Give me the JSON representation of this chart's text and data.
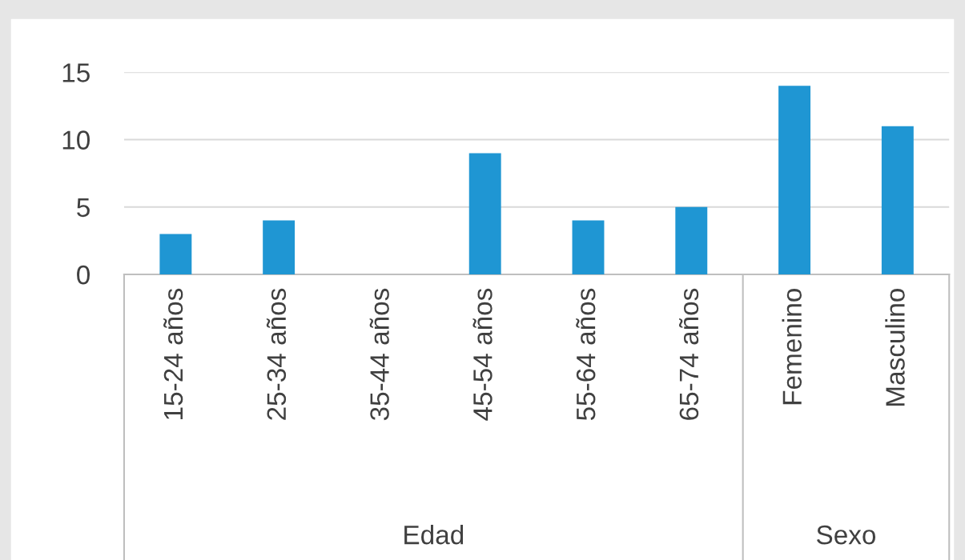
{
  "chart_data": {
    "type": "bar",
    "categories": [
      "15-24 años",
      "25-34 años",
      "35-44 años",
      "45-54 años",
      "55-64 años",
      "65-74 años",
      "Femenino",
      "Masculino"
    ],
    "values": [
      3,
      4,
      0,
      9,
      4,
      5,
      14,
      11
    ],
    "color": "#1f96d3",
    "ylim": [
      0,
      15
    ],
    "yticks": [
      0,
      5,
      10,
      15
    ],
    "grid": "y",
    "annotations": [
      "Edad",
      "Sexo"
    ]
  }
}
